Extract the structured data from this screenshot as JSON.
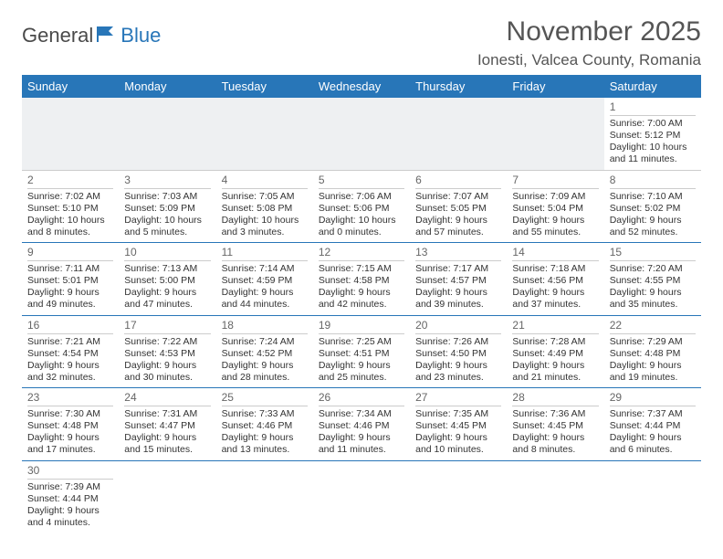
{
  "logo": {
    "part1": "General",
    "part2": "Blue"
  },
  "header": {
    "title": "November 2025",
    "location": "Ionesti, Valcea County, Romania"
  },
  "dayHeaders": [
    "Sunday",
    "Monday",
    "Tuesday",
    "Wednesday",
    "Thursday",
    "Friday",
    "Saturday"
  ],
  "colors": {
    "headerBg": "#2876b8",
    "headerText": "#ffffff",
    "rowDivider": "#2876b8",
    "cellDivider": "#cccccc",
    "textColor": "#333333"
  },
  "weeks": [
    [
      null,
      null,
      null,
      null,
      null,
      null,
      {
        "n": "1",
        "sr": "Sunrise: 7:00 AM",
        "ss": "Sunset: 5:12 PM",
        "d1": "Daylight: 10 hours",
        "d2": "and 11 minutes."
      }
    ],
    [
      {
        "n": "2",
        "sr": "Sunrise: 7:02 AM",
        "ss": "Sunset: 5:10 PM",
        "d1": "Daylight: 10 hours",
        "d2": "and 8 minutes."
      },
      {
        "n": "3",
        "sr": "Sunrise: 7:03 AM",
        "ss": "Sunset: 5:09 PM",
        "d1": "Daylight: 10 hours",
        "d2": "and 5 minutes."
      },
      {
        "n": "4",
        "sr": "Sunrise: 7:05 AM",
        "ss": "Sunset: 5:08 PM",
        "d1": "Daylight: 10 hours",
        "d2": "and 3 minutes."
      },
      {
        "n": "5",
        "sr": "Sunrise: 7:06 AM",
        "ss": "Sunset: 5:06 PM",
        "d1": "Daylight: 10 hours",
        "d2": "and 0 minutes."
      },
      {
        "n": "6",
        "sr": "Sunrise: 7:07 AM",
        "ss": "Sunset: 5:05 PM",
        "d1": "Daylight: 9 hours",
        "d2": "and 57 minutes."
      },
      {
        "n": "7",
        "sr": "Sunrise: 7:09 AM",
        "ss": "Sunset: 5:04 PM",
        "d1": "Daylight: 9 hours",
        "d2": "and 55 minutes."
      },
      {
        "n": "8",
        "sr": "Sunrise: 7:10 AM",
        "ss": "Sunset: 5:02 PM",
        "d1": "Daylight: 9 hours",
        "d2": "and 52 minutes."
      }
    ],
    [
      {
        "n": "9",
        "sr": "Sunrise: 7:11 AM",
        "ss": "Sunset: 5:01 PM",
        "d1": "Daylight: 9 hours",
        "d2": "and 49 minutes."
      },
      {
        "n": "10",
        "sr": "Sunrise: 7:13 AM",
        "ss": "Sunset: 5:00 PM",
        "d1": "Daylight: 9 hours",
        "d2": "and 47 minutes."
      },
      {
        "n": "11",
        "sr": "Sunrise: 7:14 AM",
        "ss": "Sunset: 4:59 PM",
        "d1": "Daylight: 9 hours",
        "d2": "and 44 minutes."
      },
      {
        "n": "12",
        "sr": "Sunrise: 7:15 AM",
        "ss": "Sunset: 4:58 PM",
        "d1": "Daylight: 9 hours",
        "d2": "and 42 minutes."
      },
      {
        "n": "13",
        "sr": "Sunrise: 7:17 AM",
        "ss": "Sunset: 4:57 PM",
        "d1": "Daylight: 9 hours",
        "d2": "and 39 minutes."
      },
      {
        "n": "14",
        "sr": "Sunrise: 7:18 AM",
        "ss": "Sunset: 4:56 PM",
        "d1": "Daylight: 9 hours",
        "d2": "and 37 minutes."
      },
      {
        "n": "15",
        "sr": "Sunrise: 7:20 AM",
        "ss": "Sunset: 4:55 PM",
        "d1": "Daylight: 9 hours",
        "d2": "and 35 minutes."
      }
    ],
    [
      {
        "n": "16",
        "sr": "Sunrise: 7:21 AM",
        "ss": "Sunset: 4:54 PM",
        "d1": "Daylight: 9 hours",
        "d2": "and 32 minutes."
      },
      {
        "n": "17",
        "sr": "Sunrise: 7:22 AM",
        "ss": "Sunset: 4:53 PM",
        "d1": "Daylight: 9 hours",
        "d2": "and 30 minutes."
      },
      {
        "n": "18",
        "sr": "Sunrise: 7:24 AM",
        "ss": "Sunset: 4:52 PM",
        "d1": "Daylight: 9 hours",
        "d2": "and 28 minutes."
      },
      {
        "n": "19",
        "sr": "Sunrise: 7:25 AM",
        "ss": "Sunset: 4:51 PM",
        "d1": "Daylight: 9 hours",
        "d2": "and 25 minutes."
      },
      {
        "n": "20",
        "sr": "Sunrise: 7:26 AM",
        "ss": "Sunset: 4:50 PM",
        "d1": "Daylight: 9 hours",
        "d2": "and 23 minutes."
      },
      {
        "n": "21",
        "sr": "Sunrise: 7:28 AM",
        "ss": "Sunset: 4:49 PM",
        "d1": "Daylight: 9 hours",
        "d2": "and 21 minutes."
      },
      {
        "n": "22",
        "sr": "Sunrise: 7:29 AM",
        "ss": "Sunset: 4:48 PM",
        "d1": "Daylight: 9 hours",
        "d2": "and 19 minutes."
      }
    ],
    [
      {
        "n": "23",
        "sr": "Sunrise: 7:30 AM",
        "ss": "Sunset: 4:48 PM",
        "d1": "Daylight: 9 hours",
        "d2": "and 17 minutes."
      },
      {
        "n": "24",
        "sr": "Sunrise: 7:31 AM",
        "ss": "Sunset: 4:47 PM",
        "d1": "Daylight: 9 hours",
        "d2": "and 15 minutes."
      },
      {
        "n": "25",
        "sr": "Sunrise: 7:33 AM",
        "ss": "Sunset: 4:46 PM",
        "d1": "Daylight: 9 hours",
        "d2": "and 13 minutes."
      },
      {
        "n": "26",
        "sr": "Sunrise: 7:34 AM",
        "ss": "Sunset: 4:46 PM",
        "d1": "Daylight: 9 hours",
        "d2": "and 11 minutes."
      },
      {
        "n": "27",
        "sr": "Sunrise: 7:35 AM",
        "ss": "Sunset: 4:45 PM",
        "d1": "Daylight: 9 hours",
        "d2": "and 10 minutes."
      },
      {
        "n": "28",
        "sr": "Sunrise: 7:36 AM",
        "ss": "Sunset: 4:45 PM",
        "d1": "Daylight: 9 hours",
        "d2": "and 8 minutes."
      },
      {
        "n": "29",
        "sr": "Sunrise: 7:37 AM",
        "ss": "Sunset: 4:44 PM",
        "d1": "Daylight: 9 hours",
        "d2": "and 6 minutes."
      }
    ],
    [
      {
        "n": "30",
        "sr": "Sunrise: 7:39 AM",
        "ss": "Sunset: 4:44 PM",
        "d1": "Daylight: 9 hours",
        "d2": "and 4 minutes."
      },
      null,
      null,
      null,
      null,
      null,
      null
    ]
  ]
}
